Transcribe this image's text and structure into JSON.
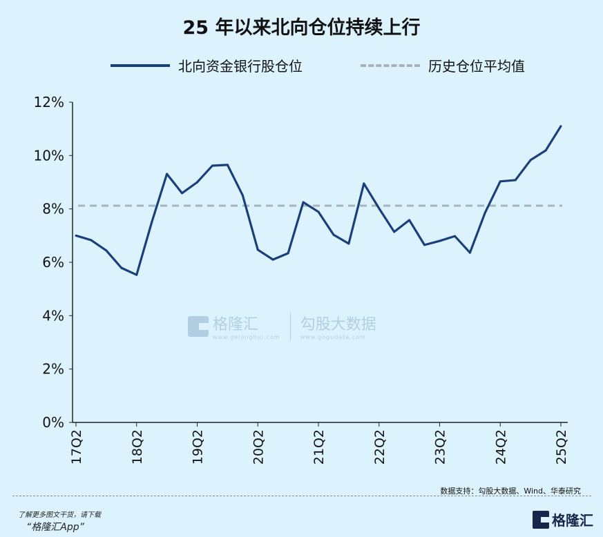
{
  "chart_data": {
    "type": "line",
    "title": "25 年以来北向仓位持续上行",
    "x": [
      "17Q2",
      "17Q3",
      "17Q4",
      "18Q1",
      "18Q2",
      "18Q3",
      "18Q4",
      "19Q1",
      "19Q2",
      "19Q3",
      "19Q4",
      "20Q1",
      "20Q2",
      "20Q3",
      "20Q4",
      "21Q1",
      "21Q2",
      "21Q3",
      "21Q4",
      "22Q1",
      "22Q2",
      "22Q3",
      "22Q4",
      "23Q1",
      "23Q2",
      "23Q3",
      "23Q4",
      "24Q1",
      "24Q2",
      "24Q3",
      "24Q4",
      "25Q1",
      "25Q2"
    ],
    "xticks": [
      "17Q2",
      "18Q2",
      "19Q2",
      "20Q2",
      "21Q2",
      "22Q2",
      "23Q2",
      "24Q2",
      "25Q2"
    ],
    "yticks": [
      "0%",
      "2%",
      "4%",
      "6%",
      "8%",
      "10%",
      "12%"
    ],
    "ylim": [
      0,
      12
    ],
    "yunit": "%",
    "grid": false,
    "legend_placement": "top",
    "series": [
      {
        "name": "北向资金银行股仓位",
        "style": "solid",
        "color": "#1b3f7a",
        "values": [
          7.0,
          6.83,
          6.44,
          5.79,
          5.53,
          7.5,
          9.31,
          8.59,
          9.0,
          9.62,
          9.65,
          8.51,
          6.47,
          6.1,
          6.34,
          8.25,
          7.89,
          7.03,
          6.7,
          8.95,
          8.02,
          7.14,
          7.58,
          6.65,
          6.8,
          6.98,
          6.36,
          7.86,
          9.03,
          9.08,
          9.83,
          10.19,
          11.1
        ]
      },
      {
        "name": "历史仓位平均值",
        "style": "dashed",
        "color": "#a9b3bc",
        "value": 8.12
      }
    ]
  },
  "watermark": {
    "brand": "格隆汇",
    "brand_url": "www.gelonghui.com",
    "data_brand": "勾股大数据",
    "data_url": "www.gogudata.com"
  },
  "footer": {
    "source": "数据支持：勾股大数据、Wind、华泰研究",
    "promo_line1": "了解更多图文干货，请下载",
    "promo_line2": "“格隆汇App”",
    "logo_text": "格隆汇"
  },
  "colors": {
    "background": "#dcf3fd",
    "line": "#1b3f7a",
    "average": "#a9b3bc"
  }
}
